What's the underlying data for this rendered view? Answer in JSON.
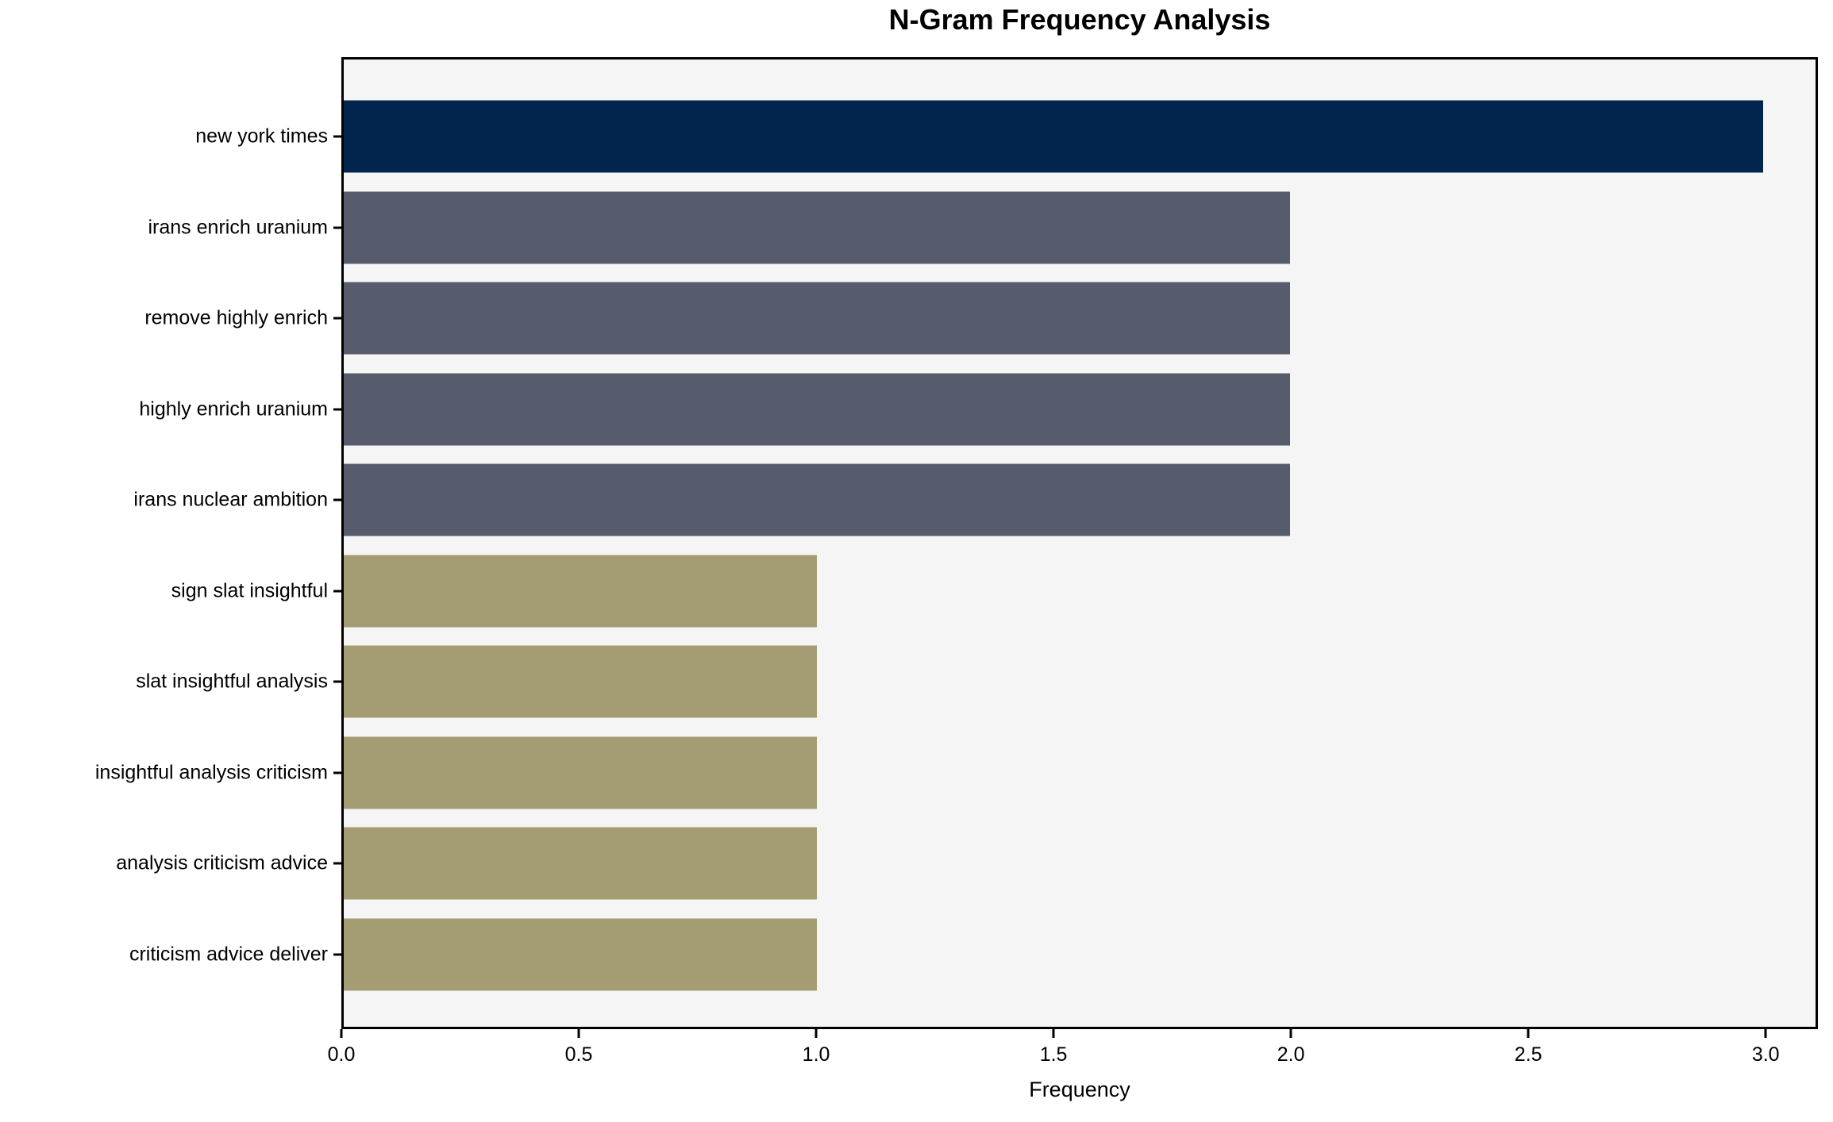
{
  "chart_data": {
    "type": "bar",
    "orientation": "horizontal",
    "title": "N-Gram Frequency Analysis",
    "xlabel": "Frequency",
    "ylabel": "",
    "categories": [
      "new york times",
      "irans enrich uranium",
      "remove highly enrich",
      "highly enrich uranium",
      "irans nuclear ambition",
      "sign slat insightful",
      "slat insightful analysis",
      "insightful analysis criticism",
      "analysis criticism advice",
      "criticism advice deliver"
    ],
    "values": [
      3,
      2,
      2,
      2,
      2,
      1,
      1,
      1,
      1,
      1
    ],
    "bar_colors": [
      "#02254E",
      "#575C6C",
      "#575C6C",
      "#575C6C",
      "#575C6C",
      "#A49C73",
      "#A49C73",
      "#A49C73",
      "#A49C73",
      "#A49C73"
    ],
    "x_ticks": [
      0.0,
      0.5,
      1.0,
      1.5,
      2.0,
      2.5,
      3.0
    ],
    "x_tick_labels": [
      "0.0",
      "0.5",
      "1.0",
      "1.5",
      "2.0",
      "2.5",
      "3.0"
    ],
    "xlim": [
      0,
      3.11
    ],
    "grid": false,
    "legend_position": "none",
    "plot_background": "#F5F5F6",
    "axis_border_color": "#000000",
    "title_color": "#000000"
  }
}
